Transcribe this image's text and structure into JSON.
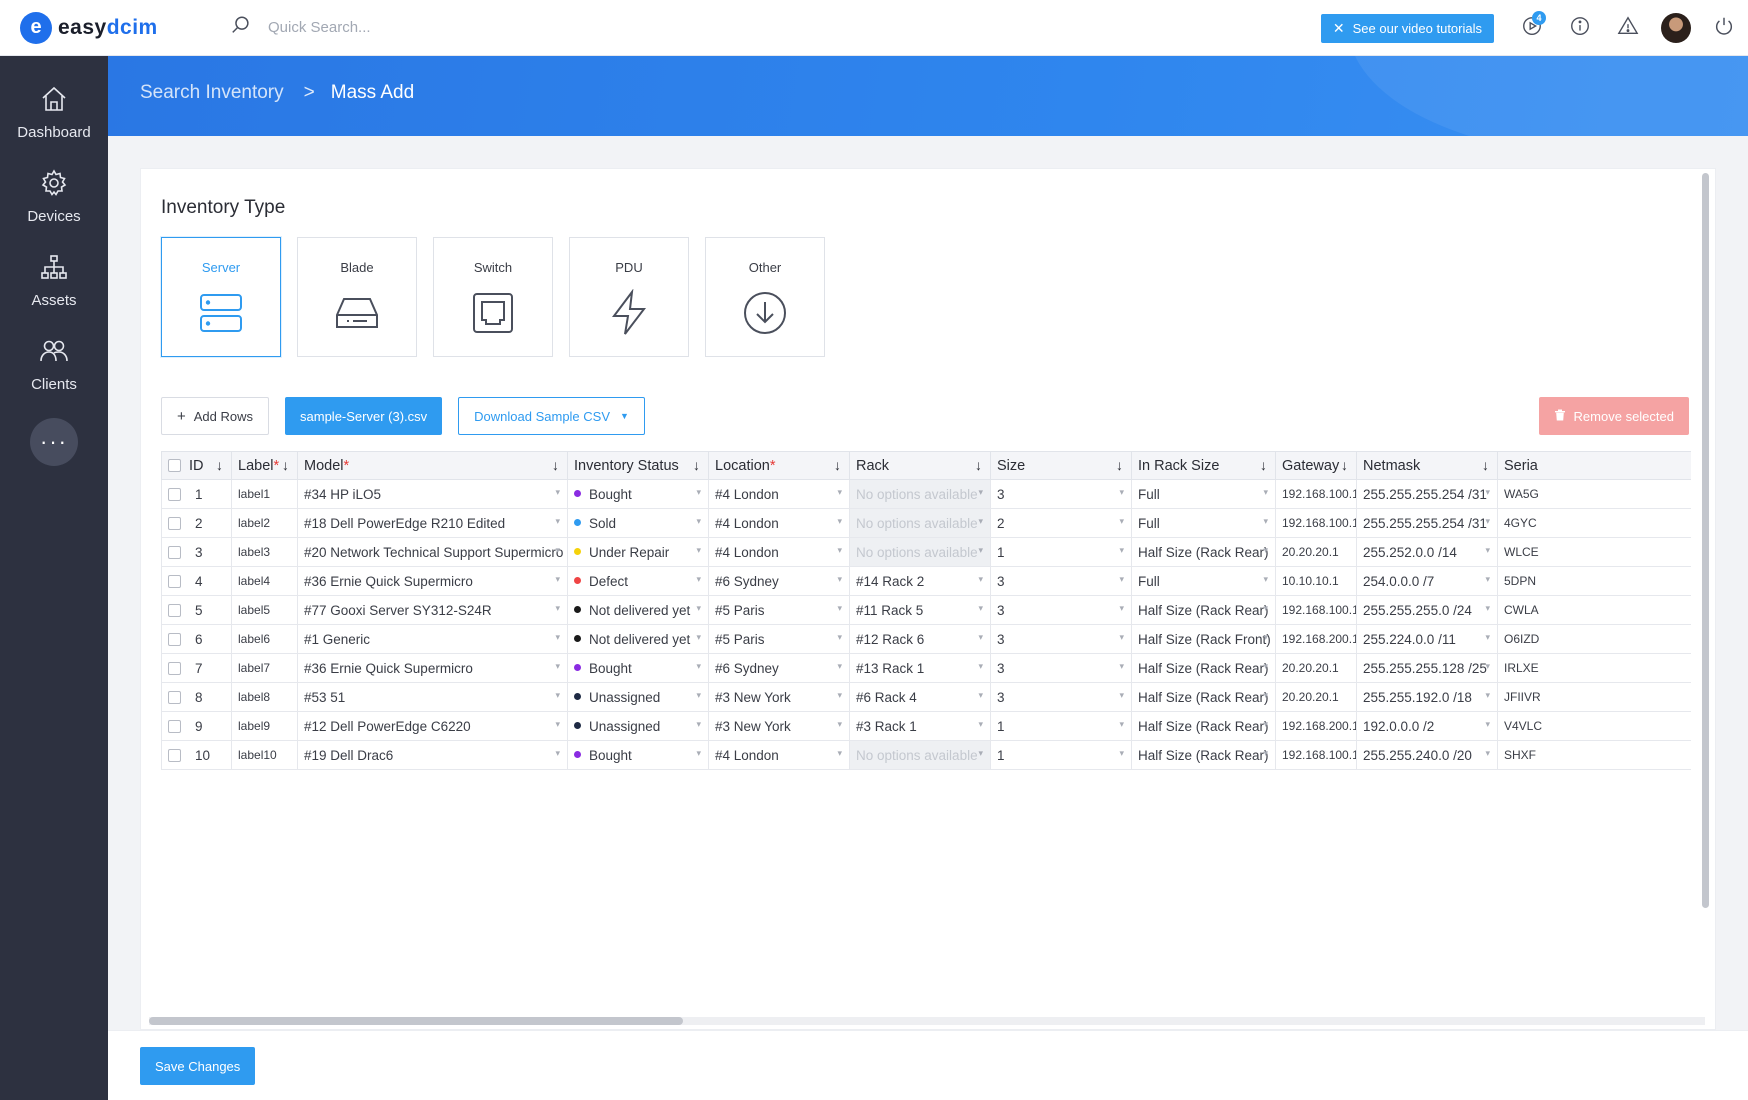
{
  "app": {
    "logo_letter": "e",
    "logo_text_a": "easy",
    "logo_text_b": "dcim",
    "search_placeholder": "Quick Search...",
    "tutorial_label": "See our video tutorials",
    "notification_count": "4"
  },
  "sidebar": {
    "items": [
      {
        "label": "Dashboard",
        "icon": "home-icon"
      },
      {
        "label": "Devices",
        "icon": "gear-icon"
      },
      {
        "label": "Assets",
        "icon": "hierarchy-icon"
      },
      {
        "label": "Clients",
        "icon": "users-icon"
      }
    ],
    "more_label": "···"
  },
  "breadcrumb": {
    "parent": "Search Inventory",
    "separator": ">",
    "current": "Mass Add"
  },
  "inventory": {
    "title": "Inventory Type",
    "types": [
      {
        "label": "Server",
        "icon": "server-icon",
        "active": true
      },
      {
        "label": "Blade",
        "icon": "drive-icon",
        "active": false
      },
      {
        "label": "Switch",
        "icon": "ethernet-port-icon",
        "active": false
      },
      {
        "label": "PDU",
        "icon": "lightning-icon",
        "active": false
      },
      {
        "label": "Other",
        "icon": "download-circle-icon",
        "active": false
      }
    ]
  },
  "actions": {
    "add_rows": "Add Rows",
    "csv_file": "sample-Server (3).csv",
    "download_sample": "Download Sample CSV",
    "remove_selected": "Remove selected"
  },
  "table": {
    "columns": [
      "ID",
      "Label",
      "Model",
      "Inventory Status",
      "Location",
      "Rack",
      "Size",
      "In Rack Size",
      "Gateway",
      "Netmask",
      "Seria"
    ],
    "required": [
      false,
      true,
      true,
      false,
      true,
      false,
      false,
      false,
      false,
      false,
      false
    ],
    "rows": [
      {
        "id": "1",
        "label": "label1",
        "model": "#34 HP iLO5",
        "status": "Bought",
        "status_color": "#8a2be2",
        "location": "#4 London",
        "rack": "No options available",
        "rack_disabled": true,
        "size": "3",
        "in_rack": "Full",
        "gateway": "192.168.100.1",
        "netmask": "255.255.255.254 /31",
        "serial": "WA5G"
      },
      {
        "id": "2",
        "label": "label2",
        "model": "#18 Dell PowerEdge R210 Edited",
        "status": "Sold",
        "status_color": "#2f9bf0",
        "location": "#4 London",
        "rack": "No options available",
        "rack_disabled": true,
        "size": "2",
        "in_rack": "Full",
        "gateway": "192.168.100.1",
        "netmask": "255.255.255.254 /31",
        "serial": "4GYC"
      },
      {
        "id": "3",
        "label": "label3",
        "model": "#20 Network Technical Support Supermicro",
        "status": "Under Repair",
        "status_color": "#f5d20a",
        "location": "#4 London",
        "rack": "No options available",
        "rack_disabled": true,
        "size": "1",
        "in_rack": "Half Size (Rack Rear)",
        "gateway": "20.20.20.1",
        "netmask": "255.252.0.0 /14",
        "serial": "WLCE"
      },
      {
        "id": "4",
        "label": "label4",
        "model": "#36 Ernie Quick Supermicro",
        "status": "Defect",
        "status_color": "#ef4444",
        "location": "#6 Sydney",
        "rack": "#14 Rack 2",
        "rack_disabled": false,
        "size": "3",
        "in_rack": "Full",
        "gateway": "10.10.10.1",
        "netmask": "254.0.0.0 /7",
        "serial": "5DPN"
      },
      {
        "id": "5",
        "label": "label5",
        "model": "#77 Gooxi Server SY312-S24R",
        "status": "Not delivered yet",
        "status_color": "#1a1a1a",
        "location": "#5 Paris",
        "rack": "#11 Rack 5",
        "rack_disabled": false,
        "size": "3",
        "in_rack": "Half Size (Rack Rear)",
        "gateway": "192.168.100.1",
        "netmask": "255.255.255.0 /24",
        "serial": "CWLA"
      },
      {
        "id": "6",
        "label": "label6",
        "model": "#1 Generic",
        "status": "Not delivered yet",
        "status_color": "#1a1a1a",
        "location": "#5 Paris",
        "rack": "#12 Rack 6",
        "rack_disabled": false,
        "size": "3",
        "in_rack": "Half Size (Rack Front)",
        "gateway": "192.168.200.1",
        "netmask": "255.224.0.0 /11",
        "serial": "O6IZD"
      },
      {
        "id": "7",
        "label": "label7",
        "model": "#36 Ernie Quick Supermicro",
        "status": "Bought",
        "status_color": "#8a2be2",
        "location": "#6 Sydney",
        "rack": "#13 Rack 1",
        "rack_disabled": false,
        "size": "3",
        "in_rack": "Half Size (Rack Rear)",
        "gateway": "20.20.20.1",
        "netmask": "255.255.255.128 /25",
        "serial": "IRLXE"
      },
      {
        "id": "8",
        "label": "label8",
        "model": "#53 51",
        "status": "Unassigned",
        "status_color": "#1e2a44",
        "location": "#3 New York",
        "rack": "#6 Rack 4",
        "rack_disabled": false,
        "size": "3",
        "in_rack": "Half Size (Rack Rear)",
        "gateway": "20.20.20.1",
        "netmask": "255.255.192.0 /18",
        "serial": "JFIIVR"
      },
      {
        "id": "9",
        "label": "label9",
        "model": "#12 Dell PowerEdge C6220",
        "status": "Unassigned",
        "status_color": "#1e2a44",
        "location": "#3 New York",
        "rack": "#3 Rack 1",
        "rack_disabled": false,
        "size": "1",
        "in_rack": "Half Size (Rack Rear)",
        "gateway": "192.168.200.1",
        "netmask": "192.0.0.0 /2",
        "serial": "V4VLC"
      },
      {
        "id": "10",
        "label": "label10",
        "model": "#19 Dell Drac6",
        "status": "Bought",
        "status_color": "#8a2be2",
        "location": "#4 London",
        "rack": "No options available",
        "rack_disabled": true,
        "size": "1",
        "in_rack": "Half Size (Rack Rear)",
        "gateway": "192.168.100.1",
        "netmask": "255.255.240.0 /20",
        "serial": "SHXF"
      }
    ]
  },
  "footer": {
    "save_label": "Save Changes"
  }
}
